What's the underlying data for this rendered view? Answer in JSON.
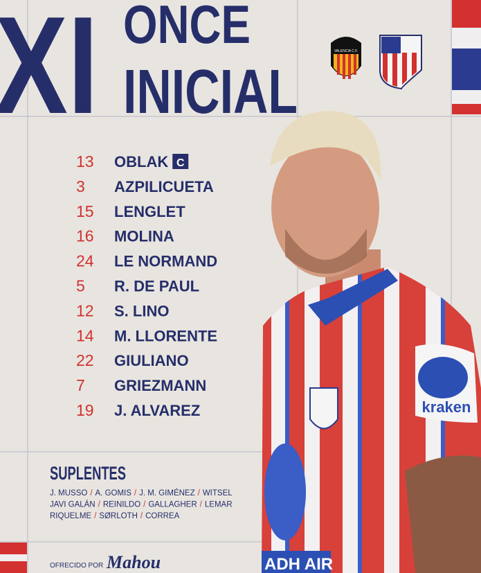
{
  "header": {
    "badge": "XI",
    "title_line1": "ONCE",
    "title_line2": "INICIAL"
  },
  "crest_home": {
    "label": "VALENCIA C.F."
  },
  "lineup": {
    "captain_mark": "C",
    "players": [
      {
        "number": "13",
        "name": "OBLAK",
        "captain": true
      },
      {
        "number": "3",
        "name": "AZPILICUETA"
      },
      {
        "number": "15",
        "name": "LENGLET"
      },
      {
        "number": "16",
        "name": "MOLINA"
      },
      {
        "number": "24",
        "name": "LE NORMAND"
      },
      {
        "number": "5",
        "name": "R. DE PAUL"
      },
      {
        "number": "12",
        "name": "S. LINO"
      },
      {
        "number": "14",
        "name": "M. LLORENTE"
      },
      {
        "number": "22",
        "name": "GIULIANO"
      },
      {
        "number": "7",
        "name": "GRIEZMANN"
      },
      {
        "number": "19",
        "name": "J. ALVAREZ"
      }
    ]
  },
  "substitutes": {
    "title": "SUPLENTES",
    "separator": "/",
    "rows": [
      [
        "J. MUSSO",
        "A. GOMIS",
        "J. M. GIMÉNEZ",
        "WITSEL"
      ],
      [
        "JAVI GALÁN",
        "REINILDO",
        "GALLAGHER",
        "LEMAR"
      ],
      [
        "RIQUELME",
        "SØRLOTH",
        "CORREA"
      ]
    ]
  },
  "shirt": {
    "sleeve_sponsor": "kraken",
    "front_sponsor": "ADH AIR"
  },
  "footer": {
    "label": "OFRECIDO POR",
    "sponsor": "Mahou"
  }
}
